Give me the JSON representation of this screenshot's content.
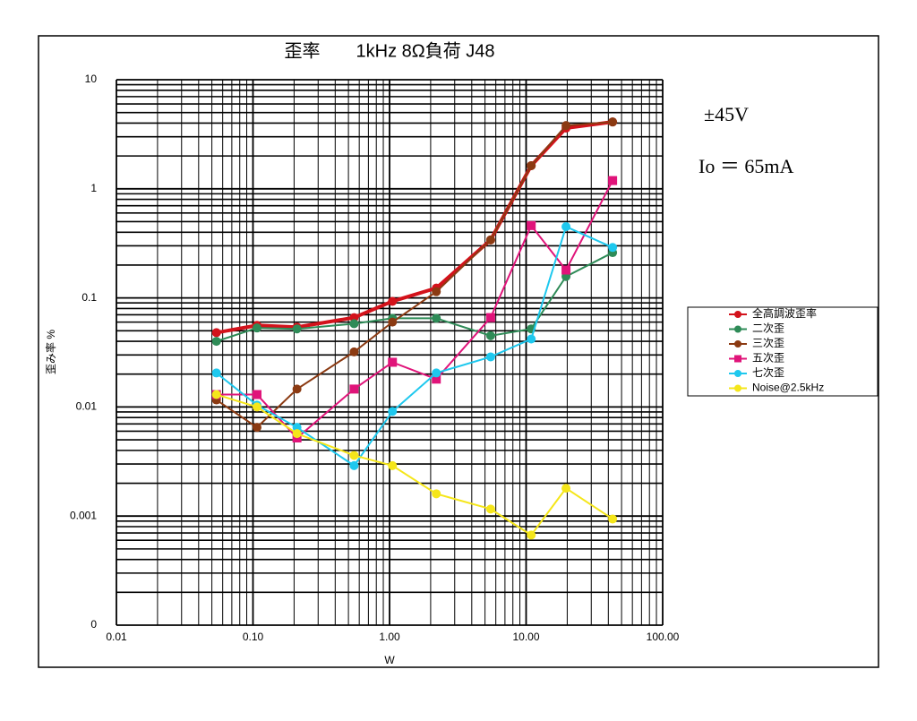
{
  "chart_data": {
    "type": "line",
    "title": "歪率　　1kHz 8Ω負荷 J48",
    "x_label": "W",
    "y_label": "歪み率 %",
    "annotations": [
      "±45V",
      "Io ＝ 65mA"
    ],
    "x": [
      0.054,
      0.107,
      0.21,
      0.55,
      1.05,
      2.2,
      5.5,
      10.9,
      19.6,
      43
    ],
    "xlim": [
      0.01,
      100
    ],
    "xticks": [
      {
        "value": 0.01,
        "label": "0.01"
      },
      {
        "value": 0.1,
        "label": "0.10"
      },
      {
        "value": 1,
        "label": "1.00"
      },
      {
        "value": 10,
        "label": "10.00"
      },
      {
        "value": 100,
        "label": "100.00"
      }
    ],
    "ylim": [
      0.0001,
      10
    ],
    "yticks": [
      10,
      1,
      0.1,
      0.01,
      0.001,
      {
        "value": 0.0001,
        "label": "0"
      }
    ],
    "log_x": true,
    "log_y": true,
    "grid": true,
    "legend": "right",
    "series": [
      {
        "name": "全高調波歪率",
        "color": "#d3121b",
        "marker": "circle",
        "width": 4,
        "values": [
          0.048,
          0.056,
          0.054,
          0.066,
          0.093,
          0.123,
          0.34,
          1.63,
          3.6,
          4.1
        ]
      },
      {
        "name": "二次歪",
        "color": "#2e8b57",
        "marker": "circle",
        "width": 2,
        "values": [
          0.04,
          0.053,
          0.052,
          0.058,
          0.065,
          0.065,
          0.045,
          0.052,
          0.157,
          0.26
        ]
      },
      {
        "name": "三次歪",
        "color": "#8b3a12",
        "marker": "circle",
        "width": 2,
        "values": [
          0.0116,
          0.0065,
          0.0146,
          0.032,
          0.06,
          0.114,
          0.34,
          1.63,
          3.8,
          4.1
        ]
      },
      {
        "name": "五次歪",
        "color": "#e0147a",
        "marker": "square",
        "width": 2,
        "values": [
          0.013,
          0.013,
          0.0052,
          0.0146,
          0.0257,
          0.018,
          0.066,
          0.46,
          0.18,
          1.19
        ]
      },
      {
        "name": "七次歪",
        "color": "#1ec8ee",
        "marker": "circle",
        "width": 2,
        "values": [
          0.0205,
          0.0104,
          0.0065,
          0.0029,
          0.0091,
          0.0205,
          0.0288,
          0.042,
          0.45,
          0.29
        ]
      },
      {
        "name": "Noise@2.5kHz",
        "color": "#f5e61a",
        "marker": "circle",
        "width": 2,
        "values": [
          0.013,
          0.01,
          0.0057,
          0.0036,
          0.0029,
          0.0016,
          0.00116,
          0.00067,
          0.0018,
          0.00094
        ]
      }
    ]
  }
}
